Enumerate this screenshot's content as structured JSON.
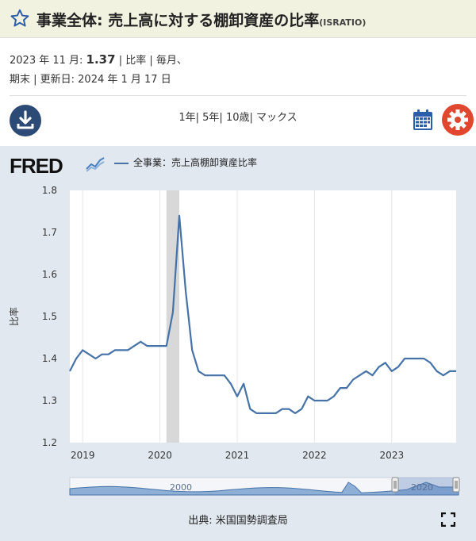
{
  "header": {
    "title": "事業全体: 売上高に対する棚卸資産の比率",
    "code": "(ISRATIO)"
  },
  "meta": {
    "line1_prefix": "2023 年 11 月:",
    "value": "1.37",
    "line1_suffix": "| 比率 | 毎月、",
    "line2": "期末 | 更新日: 2024 年 1 月 17 日"
  },
  "toolbar": {
    "ranges": [
      "1年",
      "5年",
      "10歳",
      "マックス"
    ],
    "range_separator": "|"
  },
  "brand": {
    "logo": "FRED"
  },
  "legend": {
    "series_name": "全事業：売上高棚卸資産比率"
  },
  "chart_data": {
    "type": "line",
    "ylabel": "比率",
    "ylim": [
      1.2,
      1.8
    ],
    "y_ticks": [
      1.2,
      1.3,
      1.4,
      1.5,
      1.6,
      1.7,
      1.8
    ],
    "y_tick_labels": [
      "1.2",
      "1.3",
      "1.4",
      "1.5",
      "1.6",
      "1.7",
      "1.8"
    ],
    "x_range": [
      "2018-11",
      "2023-11"
    ],
    "x_tick_labels": [
      "2019",
      "2020",
      "2021",
      "2022",
      "2023"
    ],
    "recession_shading": [
      "2020-02",
      "2020-04"
    ],
    "grid": "vertical",
    "series": [
      {
        "name": "全事業：売上高棚卸資産比率",
        "color": "#4572a7",
        "x": [
          "2018-11",
          "2018-12",
          "2019-01",
          "2019-02",
          "2019-03",
          "2019-04",
          "2019-05",
          "2019-06",
          "2019-07",
          "2019-08",
          "2019-09",
          "2019-10",
          "2019-11",
          "2019-12",
          "2020-01",
          "2020-02",
          "2020-03",
          "2020-04",
          "2020-05",
          "2020-06",
          "2020-07",
          "2020-08",
          "2020-09",
          "2020-10",
          "2020-11",
          "2020-12",
          "2021-01",
          "2021-02",
          "2021-03",
          "2021-04",
          "2021-05",
          "2021-06",
          "2021-07",
          "2021-08",
          "2021-09",
          "2021-10",
          "2021-11",
          "2021-12",
          "2022-01",
          "2022-02",
          "2022-03",
          "2022-04",
          "2022-05",
          "2022-06",
          "2022-07",
          "2022-08",
          "2022-09",
          "2022-10",
          "2022-11",
          "2022-12",
          "2023-01",
          "2023-02",
          "2023-03",
          "2023-04",
          "2023-05",
          "2023-06",
          "2023-07",
          "2023-08",
          "2023-09",
          "2023-10",
          "2023-11"
        ],
        "values": [
          1.37,
          1.4,
          1.42,
          1.41,
          1.4,
          1.41,
          1.41,
          1.42,
          1.42,
          1.42,
          1.43,
          1.44,
          1.43,
          1.43,
          1.43,
          1.43,
          1.51,
          1.74,
          1.56,
          1.42,
          1.37,
          1.36,
          1.36,
          1.36,
          1.36,
          1.34,
          1.31,
          1.34,
          1.28,
          1.27,
          1.27,
          1.27,
          1.27,
          1.28,
          1.28,
          1.27,
          1.28,
          1.31,
          1.3,
          1.3,
          1.3,
          1.31,
          1.33,
          1.33,
          1.35,
          1.36,
          1.37,
          1.36,
          1.38,
          1.39,
          1.37,
          1.38,
          1.4,
          1.4,
          1.4,
          1.4,
          1.39,
          1.37,
          1.36,
          1.37,
          1.37
        ]
      }
    ]
  },
  "navigator": {
    "labels": [
      "2000",
      "2020"
    ]
  },
  "footer": {
    "source": "出典: 米国国勢調査局"
  },
  "colors": {
    "header_bg": "#f2f2e0",
    "accent_blue": "#2b4a75",
    "gear_red": "#e0472e",
    "line": "#4572a7",
    "plot_bg": "#e2e8f0"
  },
  "icons": [
    "star-icon",
    "download-icon",
    "calendar-icon",
    "gear-icon",
    "fred-chart-icon",
    "expand-icon"
  ]
}
